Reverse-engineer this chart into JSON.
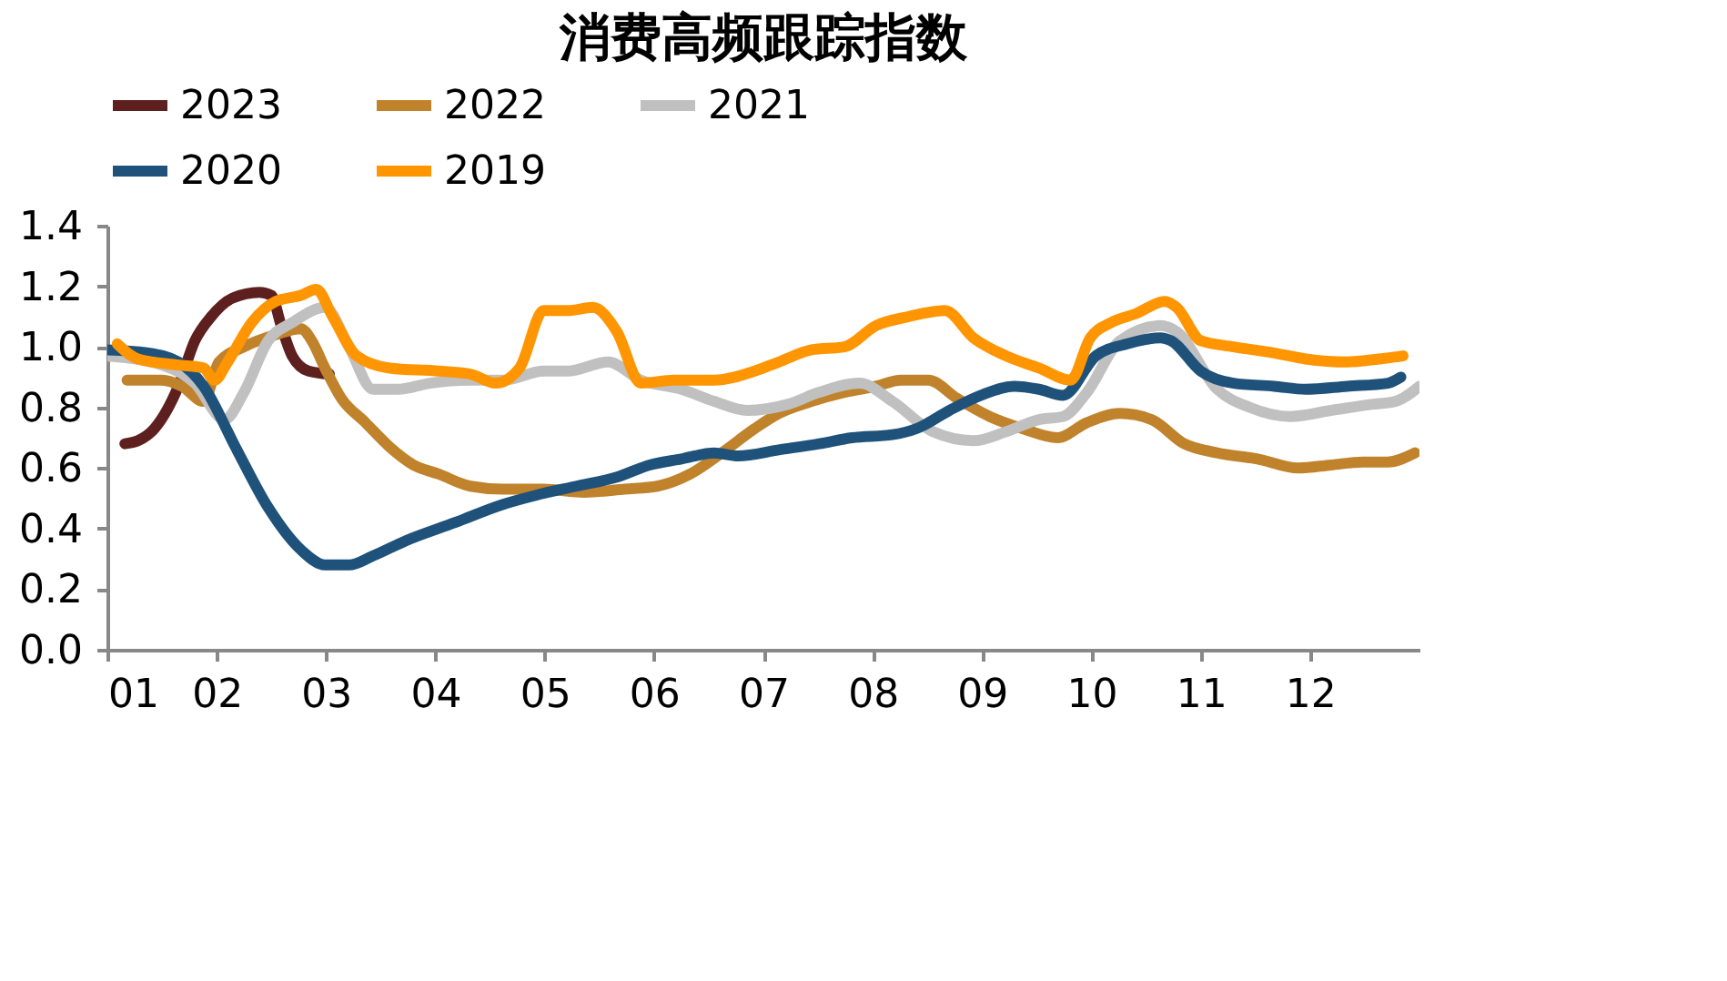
{
  "chart_data": {
    "type": "line",
    "title": "消费高频跟踪指数",
    "xlim": [
      1,
      13
    ],
    "xticks": [
      {
        "value": 1,
        "label": "01"
      },
      {
        "value": 2,
        "label": "02"
      },
      {
        "value": 3,
        "label": "03"
      },
      {
        "value": 4,
        "label": "04"
      },
      {
        "value": 5,
        "label": "05"
      },
      {
        "value": 6,
        "label": "06"
      },
      {
        "value": 7,
        "label": "07"
      },
      {
        "value": 8,
        "label": "08"
      },
      {
        "value": 9,
        "label": "09"
      },
      {
        "value": 10,
        "label": "10"
      },
      {
        "value": 11,
        "label": "11"
      },
      {
        "value": 12,
        "label": "12"
      }
    ],
    "ylim": [
      0,
      1.4
    ],
    "yticks": [
      {
        "value": 0,
        "label": "0.0"
      },
      {
        "value": 0.2,
        "label": "0.2"
      },
      {
        "value": 0.4,
        "label": "0.4"
      },
      {
        "value": 0.6,
        "label": "0.6"
      },
      {
        "value": 0.8,
        "label": "0.8"
      },
      {
        "value": 1,
        "label": "1.0"
      },
      {
        "value": 1.2,
        "label": "1.2"
      },
      {
        "value": 1.4,
        "label": "1.4"
      }
    ],
    "grid": false,
    "legend": "top",
    "series": [
      {
        "name": "2023",
        "color": "#5e1f1f",
        "x": [
          1.16,
          1.28,
          1.43,
          1.65,
          1.8,
          1.95,
          2.14,
          2.39,
          2.5,
          2.59,
          2.69,
          2.84,
          3.03
        ],
        "values": [
          0.68,
          0.69,
          0.73,
          0.87,
          1.02,
          1.1,
          1.16,
          1.18,
          1.17,
          1.07,
          0.97,
          0.92,
          0.91
        ]
      },
      {
        "name": "2022",
        "color": "#c0832b",
        "x": [
          1.18,
          1.5,
          1.68,
          1.88,
          2.02,
          2.25,
          2.54,
          2.77,
          2.87,
          2.99,
          3.14,
          3.36,
          3.58,
          3.8,
          4.03,
          4.32,
          4.62,
          4.99,
          5.36,
          5.73,
          6.03,
          6.33,
          6.62,
          6.92,
          7.14,
          7.44,
          7.74,
          8.03,
          8.26,
          8.51,
          8.77,
          9.07,
          9.37,
          9.69,
          9.96,
          10.26,
          10.55,
          10.85,
          11.15,
          11.52,
          11.89,
          12.19,
          12.48,
          12.71,
          12.96
        ],
        "values": [
          0.89,
          0.89,
          0.87,
          0.82,
          0.95,
          1.0,
          1.04,
          1.06,
          1.02,
          0.93,
          0.83,
          0.75,
          0.67,
          0.61,
          0.58,
          0.54,
          0.53,
          0.53,
          0.52,
          0.53,
          0.54,
          0.58,
          0.65,
          0.73,
          0.78,
          0.82,
          0.85,
          0.87,
          0.89,
          0.89,
          0.83,
          0.77,
          0.73,
          0.7,
          0.75,
          0.78,
          0.76,
          0.68,
          0.65,
          0.63,
          0.6,
          0.61,
          0.62,
          0.62,
          0.65
        ]
      },
      {
        "name": "2021",
        "color": "#c0c0c0",
        "x": [
          1.0,
          1.5,
          1.8,
          2.07,
          2.25,
          2.47,
          2.69,
          2.99,
          3.21,
          3.43,
          3.66,
          3.95,
          4.32,
          4.62,
          4.99,
          5.21,
          5.58,
          5.88,
          6.25,
          6.55,
          6.85,
          7.22,
          7.51,
          7.88,
          8.18,
          8.55,
          8.92,
          9.22,
          9.52,
          9.74,
          9.96,
          10.26,
          10.63,
          10.78,
          11.15,
          11.45,
          11.82,
          12.19,
          12.56,
          12.78,
          13.0
        ],
        "values": [
          0.97,
          0.94,
          0.88,
          0.76,
          0.85,
          1.02,
          1.08,
          1.13,
          1.0,
          0.86,
          0.86,
          0.88,
          0.89,
          0.89,
          0.92,
          0.92,
          0.95,
          0.89,
          0.86,
          0.82,
          0.79,
          0.81,
          0.85,
          0.88,
          0.82,
          0.72,
          0.69,
          0.72,
          0.76,
          0.77,
          0.85,
          1.02,
          1.07,
          1.05,
          0.86,
          0.8,
          0.77,
          0.79,
          0.81,
          0.82,
          0.87
        ]
      },
      {
        "name": "2020",
        "color": "#1f527a",
        "x": [
          1.0,
          1.36,
          1.65,
          1.88,
          2.17,
          2.47,
          2.77,
          2.99,
          3.21,
          3.43,
          3.73,
          4.18,
          4.62,
          4.92,
          5.29,
          5.66,
          5.96,
          6.25,
          6.55,
          6.77,
          7.14,
          7.51,
          7.81,
          8.18,
          8.4,
          8.7,
          8.99,
          9.29,
          9.52,
          9.74,
          10.04,
          10.33,
          10.63,
          10.73,
          11.0,
          11.3,
          11.67,
          11.96,
          12.34,
          12.71,
          12.83
        ],
        "values": [
          0.99,
          0.98,
          0.95,
          0.87,
          0.67,
          0.47,
          0.33,
          0.28,
          0.28,
          0.31,
          0.36,
          0.42,
          0.48,
          0.51,
          0.54,
          0.57,
          0.61,
          0.63,
          0.65,
          0.64,
          0.66,
          0.68,
          0.7,
          0.71,
          0.73,
          0.79,
          0.84,
          0.87,
          0.86,
          0.84,
          0.97,
          1.01,
          1.03,
          1.02,
          0.92,
          0.88,
          0.87,
          0.86,
          0.87,
          0.88,
          0.9
        ]
      },
      {
        "name": "2019",
        "color": "#ff9500",
        "x": [
          1.09,
          1.28,
          1.65,
          1.88,
          1.98,
          2.1,
          2.32,
          2.54,
          2.77,
          2.91,
          3.06,
          3.28,
          3.58,
          4.03,
          4.32,
          4.55,
          4.77,
          4.99,
          5.21,
          5.44,
          5.66,
          5.88,
          6.18,
          6.55,
          6.92,
          7.14,
          7.44,
          7.74,
          8.03,
          8.33,
          8.66,
          8.92,
          9.22,
          9.52,
          9.81,
          9.99,
          10.18,
          10.41,
          10.67,
          10.78,
          11.0,
          11.3,
          11.67,
          11.96,
          12.34,
          12.63,
          12.85
        ],
        "values": [
          1.01,
          0.96,
          0.94,
          0.93,
          0.89,
          0.95,
          1.08,
          1.15,
          1.17,
          1.19,
          1.1,
          0.97,
          0.93,
          0.92,
          0.91,
          0.88,
          0.93,
          1.12,
          1.12,
          1.13,
          1.05,
          0.88,
          0.89,
          0.89,
          0.92,
          0.95,
          0.99,
          1.0,
          1.07,
          1.1,
          1.12,
          1.03,
          0.97,
          0.93,
          0.89,
          1.03,
          1.08,
          1.11,
          1.15,
          1.13,
          1.02,
          1.0,
          0.98,
          0.96,
          0.95,
          0.96,
          0.97
        ]
      }
    ]
  }
}
